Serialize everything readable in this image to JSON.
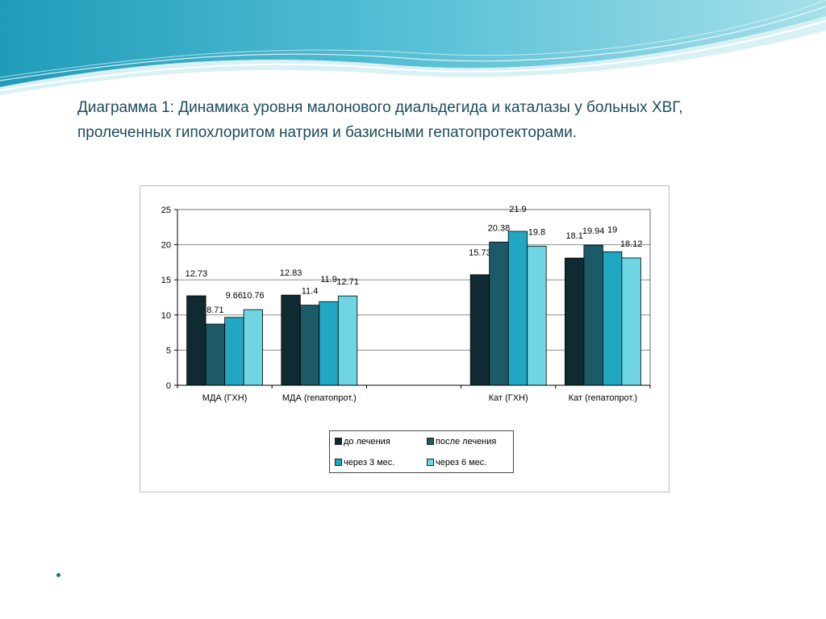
{
  "slide": {
    "title_line1": "Диаграмма 1:  Динамика уровня малонового диальдегида и каталазы у больных ХВГ,",
    "title_line2": "пролеченных гипохлоритом натрия и базисными гепатопротекторами."
  },
  "colors": {
    "title": "#1c4b5c",
    "wave_dark": "#2aa3bf",
    "wave_light": "#bfe7ef"
  },
  "chart_data": {
    "type": "bar",
    "categories": [
      "МДА (ГХН)",
      "МДА (гепатопрот.)",
      "",
      "Кат (ГХН)",
      "Кат (гепатопрот.)"
    ],
    "series": [
      {
        "name": "до лечения",
        "color": "#0f2a30",
        "values": [
          12.73,
          12.83,
          null,
          15.73,
          18.1
        ]
      },
      {
        "name": "после лечения",
        "color": "#1b5a66",
        "values": [
          8.71,
          11.4,
          null,
          20.38,
          19.94
        ]
      },
      {
        "name": "через 3 мес.",
        "color": "#22a7c2",
        "values": [
          9.66,
          11.9,
          null,
          21.9,
          19
        ]
      },
      {
        "name": "через 6 мес.",
        "color": "#6fd5e3",
        "values": [
          10.76,
          12.71,
          null,
          19.8,
          18.12
        ]
      }
    ],
    "ylim": [
      0,
      25
    ],
    "yticks": [
      0,
      5,
      10,
      15,
      20,
      25
    ],
    "grid": true,
    "legend_position": "bottom",
    "title": "",
    "xlabel": "",
    "ylabel": ""
  }
}
